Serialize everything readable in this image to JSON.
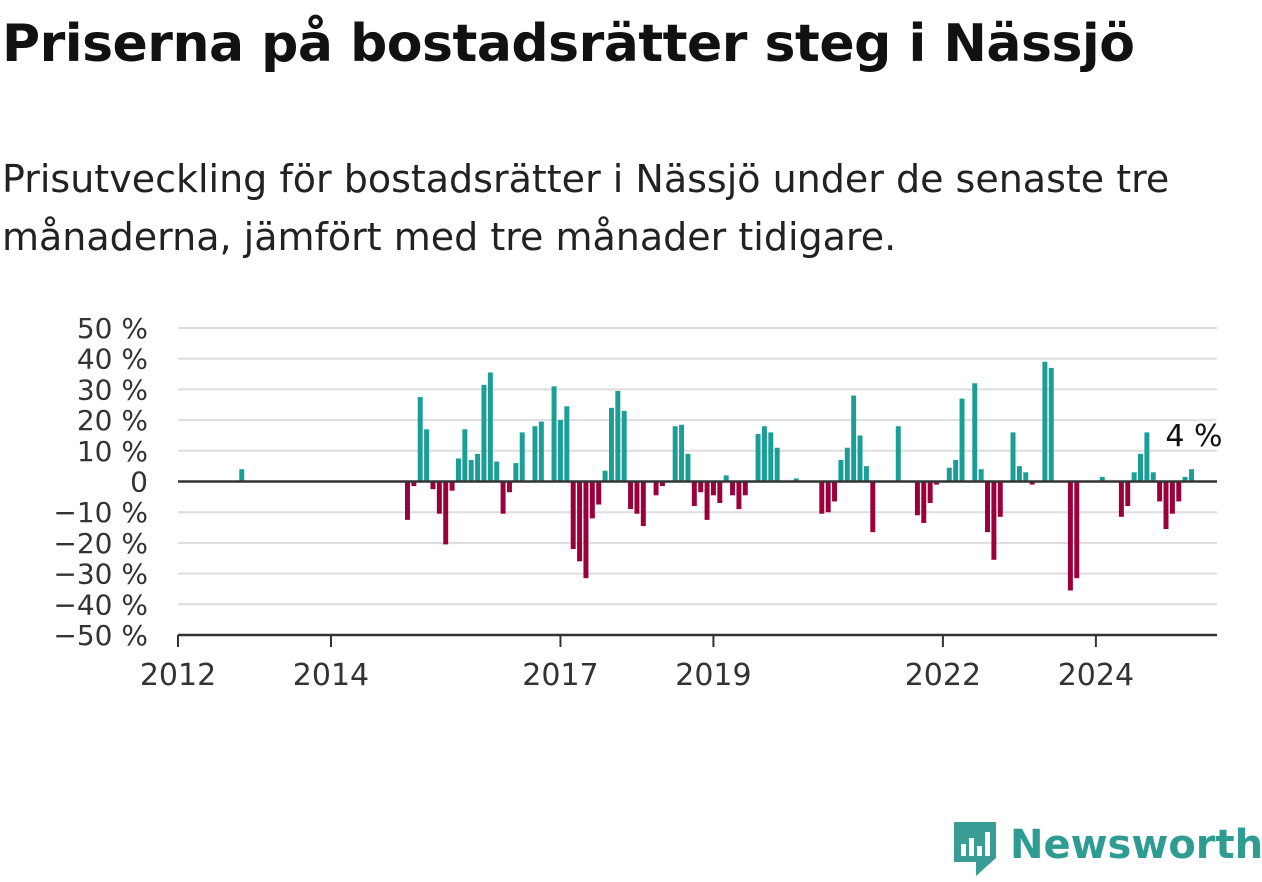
{
  "header": {
    "title": "Priserna på bostadsrätter steg i Nässjö",
    "subtitle": "Prisutveckling för bostadsrätter i Nässjö under de senaste tre månaderna, jämfört med tre månader tidigare."
  },
  "brand": {
    "name": "Newsworthy",
    "color": "#2f9c93",
    "icon": "newsworthy-logo-icon"
  },
  "colors": {
    "positive": "#1a9e96",
    "negative": "#99003c",
    "grid": "#dddddd",
    "axis": "#333333"
  },
  "chart_data": {
    "type": "bar",
    "title": "Priserna på bostadsrätter steg i Nässjö",
    "subtitle": "Prisutveckling för bostadsrätter i Nässjö under de senaste tre månaderna, jämfört med tre månader tidigare.",
    "xlabel": "",
    "ylabel": "",
    "ylim": [
      -50,
      50
    ],
    "xlim": [
      "2012-01",
      "2025-08"
    ],
    "y_ticks": [
      50,
      40,
      30,
      20,
      10,
      0,
      -10,
      -20,
      -30,
      -40,
      -50
    ],
    "y_tick_labels": [
      "50 %",
      "40 %",
      "30 %",
      "20 %",
      "10 %",
      "0",
      "−10 %",
      "−20 %",
      "−30 %",
      "−40 %",
      "−50 %"
    ],
    "x_ticks": [
      "2012-01",
      "2014-01",
      "2017-01",
      "2019-01",
      "2022-01",
      "2024-01"
    ],
    "x_tick_labels": [
      "2012",
      "2014",
      "2017",
      "2019",
      "2022",
      "2024"
    ],
    "grid": true,
    "annotation": {
      "text": "4 %",
      "month": "2025-04",
      "value": 4
    },
    "months": [
      "2012-01",
      "2012-02",
      "2012-03",
      "2012-04",
      "2012-05",
      "2012-06",
      "2012-07",
      "2012-08",
      "2012-09",
      "2012-10",
      "2012-11",
      "2012-12",
      "2013-01",
      "2013-02",
      "2013-03",
      "2013-04",
      "2013-05",
      "2013-06",
      "2013-07",
      "2013-08",
      "2013-09",
      "2013-10",
      "2013-11",
      "2013-12",
      "2014-01",
      "2014-02",
      "2014-03",
      "2014-04",
      "2014-05",
      "2014-06",
      "2014-07",
      "2014-08",
      "2014-09",
      "2014-10",
      "2014-11",
      "2014-12",
      "2015-01",
      "2015-02",
      "2015-03",
      "2015-04",
      "2015-05",
      "2015-06",
      "2015-07",
      "2015-08",
      "2015-09",
      "2015-10",
      "2015-11",
      "2015-12",
      "2016-01",
      "2016-02",
      "2016-03",
      "2016-04",
      "2016-05",
      "2016-06",
      "2016-07",
      "2016-08",
      "2016-09",
      "2016-10",
      "2016-11",
      "2016-12",
      "2017-01",
      "2017-02",
      "2017-03",
      "2017-04",
      "2017-05",
      "2017-06",
      "2017-07",
      "2017-08",
      "2017-09",
      "2017-10",
      "2017-11",
      "2017-12",
      "2018-01",
      "2018-02",
      "2018-03",
      "2018-04",
      "2018-05",
      "2018-06",
      "2018-07",
      "2018-08",
      "2018-09",
      "2018-10",
      "2018-11",
      "2018-12",
      "2019-01",
      "2019-02",
      "2019-03",
      "2019-04",
      "2019-05",
      "2019-06",
      "2019-07",
      "2019-08",
      "2019-09",
      "2019-10",
      "2019-11",
      "2019-12",
      "2020-01",
      "2020-02",
      "2020-03",
      "2020-04",
      "2020-05",
      "2020-06",
      "2020-07",
      "2020-08",
      "2020-09",
      "2020-10",
      "2020-11",
      "2020-12",
      "2021-01",
      "2021-02",
      "2021-03",
      "2021-04",
      "2021-05",
      "2021-06",
      "2021-07",
      "2021-08",
      "2021-09",
      "2021-10",
      "2021-11",
      "2021-12",
      "2022-01",
      "2022-02",
      "2022-03",
      "2022-04",
      "2022-05",
      "2022-06",
      "2022-07",
      "2022-08",
      "2022-09",
      "2022-10",
      "2022-11",
      "2022-12",
      "2023-01",
      "2023-02",
      "2023-03",
      "2023-04",
      "2023-05",
      "2023-06",
      "2023-07",
      "2023-08",
      "2023-09",
      "2023-10",
      "2023-11",
      "2023-12",
      "2024-01",
      "2024-02",
      "2024-03",
      "2024-04",
      "2024-05",
      "2024-06",
      "2024-07",
      "2024-08",
      "2024-09",
      "2024-10",
      "2024-11",
      "2024-12",
      "2025-01",
      "2025-02",
      "2025-03",
      "2025-04"
    ],
    "values": [
      null,
      null,
      null,
      null,
      null,
      null,
      null,
      null,
      null,
      null,
      4,
      null,
      null,
      null,
      null,
      null,
      null,
      null,
      null,
      null,
      null,
      null,
      null,
      null,
      null,
      null,
      null,
      null,
      null,
      null,
      null,
      null,
      null,
      null,
      null,
      null,
      -12.5,
      -1.5,
      27.5,
      17,
      -2.5,
      -10.5,
      -20.5,
      -3,
      7.5,
      17,
      7,
      9,
      31.5,
      35.5,
      6.5,
      -10.5,
      -3.5,
      6,
      16,
      null,
      18,
      19.5,
      null,
      31,
      20,
      24.5,
      -22,
      -26,
      -31.5,
      -12,
      -7.5,
      3.5,
      24,
      29.5,
      23,
      -9,
      -10.5,
      -14.5,
      null,
      -4.5,
      -1.5,
      null,
      18,
      18.5,
      9,
      -8,
      -3.5,
      -12.5,
      -4.5,
      -7,
      2,
      -4.5,
      -9,
      -4.5,
      null,
      15.5,
      18,
      16,
      11,
      null,
      null,
      1,
      null,
      null,
      null,
      -10.5,
      -10,
      -6.5,
      7,
      11,
      28,
      15,
      5,
      -16.5,
      null,
      null,
      null,
      18,
      null,
      null,
      -11,
      -13.5,
      -7,
      -1,
      null,
      4.5,
      7,
      27,
      null,
      32,
      4,
      -16.5,
      -25.5,
      -11.5,
      null,
      16,
      5,
      3,
      -1,
      null,
      39,
      37,
      null,
      null,
      -35.5,
      -31.5,
      null,
      null,
      null,
      1.5,
      null,
      null,
      -11.5,
      -8,
      3,
      9,
      16,
      3,
      -6.5,
      -15.5,
      -10.5,
      -6.5,
      1.5,
      4
    ]
  }
}
